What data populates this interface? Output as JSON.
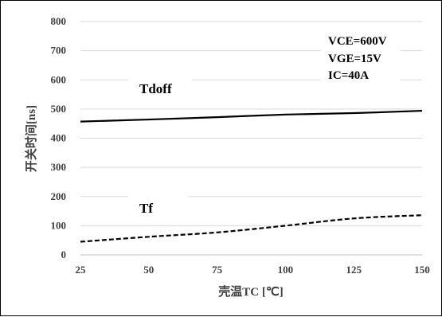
{
  "chart_data": {
    "type": "line",
    "title": "",
    "xlabel": "壳温TC [℃]",
    "ylabel": "开关时间[ns]",
    "xlim": [
      25,
      150
    ],
    "ylim": [
      0,
      800
    ],
    "x_ticks": [
      "25",
      "50",
      "75",
      "100",
      "125",
      "150"
    ],
    "y_ticks": [
      "0",
      "100",
      "200",
      "300",
      "400",
      "500",
      "600",
      "700",
      "800"
    ],
    "grid": "horizontal",
    "annotations": [
      "VCE=600V",
      "VGE=15V",
      "IC=40A"
    ],
    "series": [
      {
        "name": "Tdoff",
        "style": "solid",
        "color": "#000000",
        "x": [
          25,
          50,
          75,
          100,
          125,
          150
        ],
        "y": [
          457,
          464,
          472,
          481,
          486,
          494
        ]
      },
      {
        "name": "Tf",
        "style": "dashed",
        "color": "#000000",
        "x": [
          25,
          50,
          75,
          100,
          125,
          150
        ],
        "y": [
          45,
          62,
          77,
          100,
          125,
          136
        ]
      }
    ]
  }
}
